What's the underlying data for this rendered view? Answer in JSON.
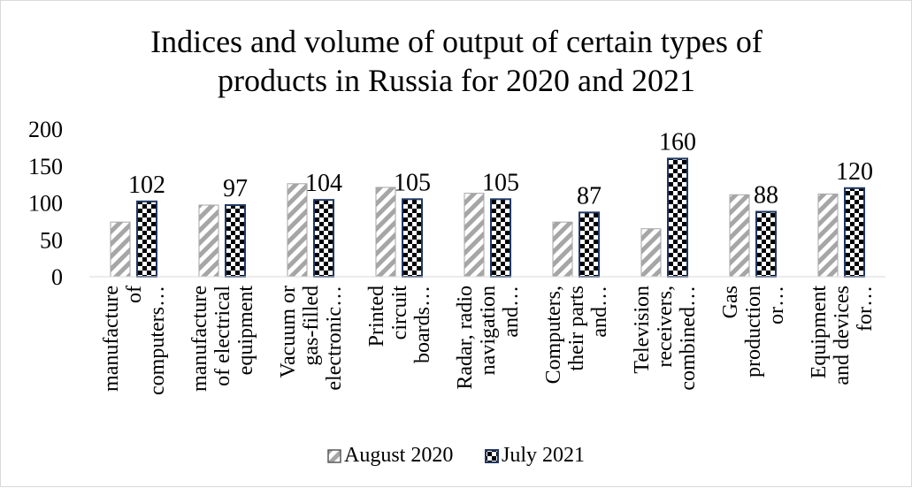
{
  "chart_data": {
    "type": "bar",
    "title": "Indices and volume of output of certain types of products in Russia for 2020 and 2021",
    "title_lines": [
      "Indices and volume of output of certain types of",
      "products in Russia for 2020 and 2021"
    ],
    "xlabel": "",
    "ylabel": "",
    "ylim": [
      0,
      200
    ],
    "yticks": [
      0,
      50,
      100,
      150,
      200
    ],
    "grid": false,
    "legend_position": "bottom",
    "categories": [
      "manufacture of computers…",
      "manufacture of electrical equipment",
      "Vacuum or gas-filled electronic…",
      "Printed circuit boards…",
      "Radar, radio navigation and…",
      "Computers, their parts and…",
      "Television receivers, combined…",
      "Gas production or…",
      "Equipment and devices for…"
    ],
    "category_label_lines": [
      [
        "manufacture",
        "of",
        "computers…"
      ],
      [
        "manufacture",
        "of electrical",
        "equipment"
      ],
      [
        "Vacuum or",
        "gas-filled",
        "electronic…"
      ],
      [
        "Printed",
        "circuit",
        "boards…"
      ],
      [
        "Radar, radio",
        "navigation",
        "and…"
      ],
      [
        "Computers,",
        "their parts",
        "and…"
      ],
      [
        "Television",
        "receivers,",
        "combined…"
      ],
      [
        "Gas",
        "production",
        "or…"
      ],
      [
        "Equipment",
        "and devices",
        "for…"
      ]
    ],
    "series": [
      {
        "name": "August 2020",
        "pattern": "diagonal-stripes",
        "color": "#a6a6a6",
        "values": [
          74,
          97,
          126,
          121,
          113,
          74,
          65,
          111,
          112
        ],
        "show_labels": false
      },
      {
        "name": "July 2021",
        "pattern": "checkerboard",
        "color": "#000000",
        "border_color": "#1f3864",
        "values": [
          102,
          97,
          104,
          105,
          105,
          87,
          160,
          88,
          120
        ],
        "show_labels": true
      }
    ]
  }
}
